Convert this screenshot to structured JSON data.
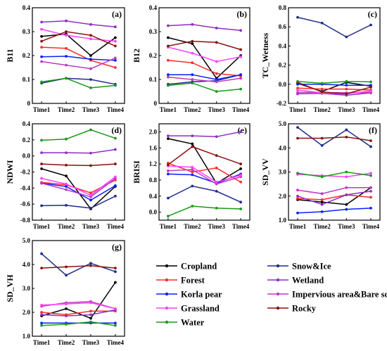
{
  "chart_data": {
    "type": "line",
    "x": [
      "Time1",
      "Time2",
      "Time3",
      "Time4"
    ],
    "series_meta": [
      {
        "key": "cropland",
        "name": "Cropland",
        "color": "#000000"
      },
      {
        "key": "snow",
        "name": "Snow&Ice",
        "color": "#1f2d8c"
      },
      {
        "key": "forest",
        "name": "Forest",
        "color": "#ff2a2a"
      },
      {
        "key": "wetland",
        "name": "Wetland",
        "color": "#8e2ec4"
      },
      {
        "key": "korla",
        "name": "Korla pear",
        "color": "#0a1fff"
      },
      {
        "key": "impervious",
        "name": "Impervious area&Bare soil",
        "color": "#c03ac0"
      },
      {
        "key": "grassland",
        "name": "Grassland",
        "color": "#ff40ff"
      },
      {
        "key": "rocky",
        "name": "Rocky",
        "color": "#8b1010"
      },
      {
        "key": "water",
        "name": "Water",
        "color": "#1a9a1a"
      }
    ],
    "panels": [
      {
        "label": "(a)",
        "ylabel": "B11",
        "ylim": [
          0,
          0.4
        ],
        "yticks": [
          "0",
          "0.1",
          "0.2",
          "0.3",
          "0.4"
        ],
        "series": {
          "cropland": [
            0.28,
            0.29,
            0.2,
            0.275
          ],
          "snow": [
            0.085,
            0.105,
            0.1,
            0.08
          ],
          "forest": [
            0.235,
            0.23,
            0.18,
            0.15
          ],
          "wetland": [
            0.34,
            0.345,
            0.33,
            0.32
          ],
          "korla": [
            0.195,
            0.197,
            0.185,
            0.18
          ],
          "impervious": [
            0.175,
            0.16,
            0.145,
            0.19
          ],
          "grassland": [
            0.31,
            0.285,
            0.27,
            0.26
          ],
          "rocky": [
            0.26,
            0.3,
            0.285,
            0.24
          ],
          "water": [
            0.09,
            0.105,
            0.065,
            0.075
          ]
        }
      },
      {
        "label": "(b)",
        "ylabel": "B12",
        "ylim": [
          0,
          0.4
        ],
        "yticks": [
          "0",
          "0.1",
          "0.2",
          "0.3",
          "0.4"
        ],
        "series": {
          "cropland": [
            0.275,
            0.25,
            0.105,
            0.2
          ],
          "snow": [
            0.08,
            0.09,
            0.095,
            0.12
          ],
          "forest": [
            0.18,
            0.17,
            0.125,
            0.115
          ],
          "wetland": [
            0.325,
            0.33,
            0.315,
            0.305
          ],
          "korla": [
            0.12,
            0.12,
            0.1,
            0.12
          ],
          "impervious": [
            0.11,
            0.1,
            0.09,
            0.105
          ],
          "grassland": [
            0.235,
            0.21,
            0.175,
            0.195
          ],
          "rocky": [
            0.24,
            0.26,
            0.255,
            0.225
          ],
          "water": [
            0.075,
            0.085,
            0.05,
            0.06
          ]
        }
      },
      {
        "label": "(c)",
        "ylabel": "TC_Wetness",
        "ylim": [
          -0.2,
          0.8
        ],
        "yticks": [
          "-0.2",
          "0.0",
          "0.2",
          "0.4",
          "0.6",
          "0.8"
        ],
        "series": {
          "cropland": [
            0.01,
            -0.075,
            0.02,
            -0.02
          ],
          "snow": [
            0.7,
            0.64,
            0.495,
            0.62
          ],
          "forest": [
            -0.04,
            -0.05,
            -0.05,
            -0.06
          ],
          "wetland": [
            -0.1,
            -0.095,
            -0.115,
            -0.09
          ],
          "korla": [
            0.0,
            0.0,
            -0.01,
            -0.01
          ],
          "impervious": [
            -0.085,
            -0.085,
            -0.09,
            -0.085
          ],
          "grassland": [
            -0.06,
            -0.09,
            -0.1,
            -0.07
          ],
          "rocky": [
            0.02,
            -0.08,
            -0.1,
            -0.03
          ],
          "water": [
            0.03,
            0.01,
            0.03,
            0.025
          ]
        }
      },
      {
        "label": "(d)",
        "ylabel": "NDWI",
        "ylim": [
          -0.8,
          0.4
        ],
        "yticks": [
          "-0.8",
          "-0.6",
          "-0.4",
          "-0.2",
          "0.0",
          "0.2",
          "0.4"
        ],
        "series": {
          "cropland": [
            -0.16,
            -0.25,
            -0.66,
            -0.38
          ],
          "snow": [
            -0.62,
            -0.615,
            -0.65,
            -0.5
          ],
          "forest": [
            -0.33,
            -0.36,
            -0.46,
            -0.3
          ],
          "wetland": [
            0.04,
            0.04,
            0.035,
            0.08
          ],
          "korla": [
            -0.34,
            -0.38,
            -0.55,
            -0.37
          ],
          "impervious": [
            -0.34,
            -0.42,
            -0.51,
            -0.28
          ],
          "grassland": [
            -0.28,
            -0.35,
            -0.49,
            -0.26
          ],
          "rocky": [
            -0.1,
            -0.115,
            -0.12,
            -0.1
          ],
          "water": [
            0.195,
            0.21,
            0.325,
            0.22
          ]
        }
      },
      {
        "label": "(e)",
        "ylabel": "BRISI",
        "ylim": [
          -0.2,
          2.2
        ],
        "yticks": [
          "0.0",
          "0.4",
          "0.8",
          "1.2",
          "1.6",
          "2.0"
        ],
        "series": {
          "cropland": [
            1.83,
            1.7,
            0.72,
            1.08
          ],
          "snow": [
            0.35,
            0.65,
            0.52,
            0.25
          ],
          "forest": [
            1.22,
            1.0,
            1.1,
            0.75
          ],
          "wetland": [
            1.9,
            1.9,
            1.88,
            2.0
          ],
          "korla": [
            0.95,
            0.93,
            0.72,
            0.95
          ],
          "impervious": [
            1.03,
            1.06,
            0.7,
            0.88
          ],
          "grassland": [
            1.15,
            1.12,
            0.75,
            0.92
          ],
          "rocky": [
            1.18,
            1.63,
            1.41,
            1.2
          ],
          "water": [
            -0.1,
            0.15,
            0.1,
            0.08
          ]
        }
      },
      {
        "label": "(f)",
        "ylabel": "SD_VV",
        "ylim": [
          1.0,
          5.0
        ],
        "yticks": [
          "1.0",
          "2.0",
          "3.0",
          "4.0",
          "5.0"
        ],
        "series": {
          "cropland": [
            1.85,
            1.75,
            1.65,
            2.35
          ],
          "snow": [
            4.85,
            4.1,
            4.75,
            4.05
          ],
          "forest": [
            1.9,
            1.85,
            2.05,
            1.95
          ],
          "wetland": [
            2.0,
            1.65,
            2.05,
            2.2
          ],
          "korla": [
            1.3,
            1.35,
            1.45,
            1.5
          ],
          "impervious": [
            2.25,
            2.1,
            2.35,
            2.35
          ],
          "grassland": [
            2.9,
            2.85,
            2.8,
            2.95
          ],
          "rocky": [
            4.4,
            4.4,
            4.45,
            4.3
          ],
          "water": [
            2.95,
            2.8,
            3.0,
            2.85
          ]
        }
      },
      {
        "label": "(g)",
        "ylabel": "SD_VH",
        "ylim": [
          1.0,
          5.0
        ],
        "yticks": [
          "1.0",
          "2.0",
          "3.0",
          "4.0",
          "5.0"
        ],
        "series": {
          "cropland": [
            1.85,
            2.15,
            1.75,
            3.25
          ],
          "snow": [
            4.45,
            3.55,
            4.05,
            3.7
          ],
          "forest": [
            2.0,
            1.9,
            2.05,
            2.05
          ],
          "wetland": [
            1.9,
            1.85,
            1.9,
            2.1
          ],
          "korla": [
            1.55,
            1.55,
            1.55,
            1.55
          ],
          "impervious": [
            2.25,
            2.4,
            2.45,
            2.15
          ],
          "grassland": [
            2.3,
            2.35,
            2.4,
            2.15
          ],
          "rocky": [
            3.85,
            3.9,
            3.95,
            3.85
          ],
          "water": [
            1.45,
            1.5,
            1.6,
            1.45
          ]
        }
      }
    ]
  }
}
